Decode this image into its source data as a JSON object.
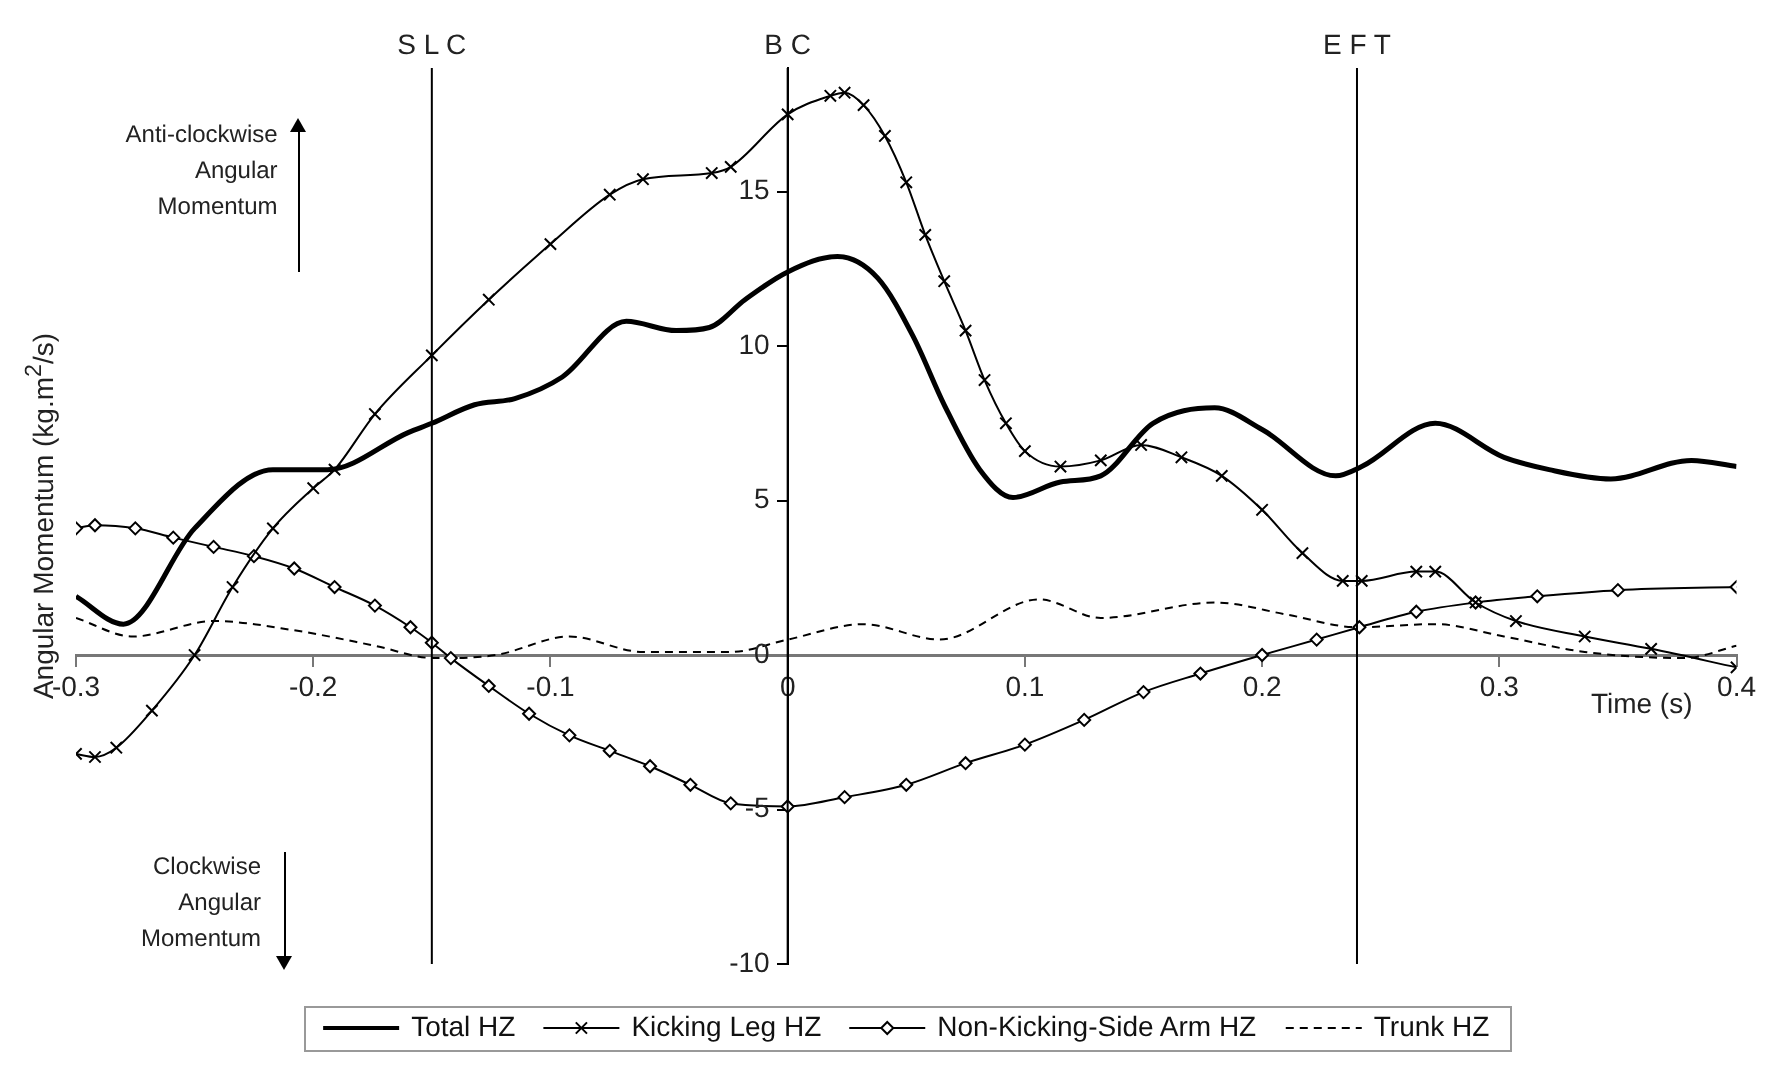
{
  "chart_data": {
    "type": "line",
    "xlabel": "Time (s)",
    "ylabel": "Angular Momentum (kg.m$^{2}$/s)",
    "xlim": [
      -0.3,
      0.4
    ],
    "xticks": [
      -0.3,
      -0.2,
      -0.1,
      0,
      0.1,
      0.2,
      0.3,
      0.4
    ],
    "ylim": [
      -10,
      19
    ],
    "yticks": [
      -10,
      -5,
      0,
      5,
      10,
      15
    ],
    "legend": "bottom",
    "annotations": [
      "Anti-clockwise Angular Momentum",
      "Clockwise Angular Momentum"
    ],
    "ref_lines": [
      {
        "axis": "x",
        "value": -0.15,
        "label": "S L C",
        "color": "#000000"
      },
      {
        "axis": "x",
        "value": 0,
        "label": "B C",
        "color": "#000000"
      },
      {
        "axis": "x",
        "value": 0.24,
        "label": "E F T",
        "color": "#000000"
      }
    ],
    "series": [
      {
        "name": "Total HZ",
        "color": "#000000",
        "marker": "none",
        "line_style": "solid",
        "x": [
          -0.3,
          -0.28,
          -0.25,
          -0.217,
          -0.194,
          -0.16,
          -0.15,
          -0.132,
          -0.115,
          -0.095,
          -0.068,
          -0.047,
          -0.033,
          -0.018,
          0,
          0.021,
          0.038,
          0.053,
          0.066,
          0.081,
          0.095,
          0.115,
          0.132,
          0.154,
          0.18,
          0.2,
          0.231,
          0.242,
          0.273,
          0.302,
          0.321,
          0.347,
          0.381,
          0.4
        ],
        "values": [
          1.9,
          1.0,
          4.1,
          6.0,
          6.0,
          7.2,
          7.5,
          8.1,
          8.3,
          9.0,
          10.8,
          10.5,
          10.6,
          11.5,
          12.4,
          12.9,
          12.2,
          10.3,
          8.1,
          6.0,
          5.1,
          5.6,
          5.8,
          7.5,
          8.0,
          7.3,
          5.8,
          6.1,
          7.5,
          6.4,
          6.0,
          5.7,
          6.3,
          6.1
        ]
      },
      {
        "name": "Kicking Leg HZ",
        "color": "#000000",
        "marker": "cross",
        "line_style": "solid",
        "x": [
          -0.3,
          -0.292,
          -0.283,
          -0.268,
          -0.25,
          -0.234,
          -0.217,
          -0.2,
          -0.191,
          -0.174,
          -0.15,
          -0.126,
          -0.1,
          -0.075,
          -0.061,
          -0.032,
          -0.024,
          0,
          0.018,
          0.024,
          0.032,
          0.041,
          0.05,
          0.058,
          0.066,
          0.075,
          0.083,
          0.092,
          0.1,
          0.115,
          0.132,
          0.149,
          0.166,
          0.183,
          0.2,
          0.217,
          0.234,
          0.242,
          0.265,
          0.273,
          0.29,
          0.307,
          0.336,
          0.364,
          0.4
        ],
        "values": [
          -3.2,
          -3.3,
          -3.0,
          -1.8,
          0,
          2.2,
          4.1,
          5.4,
          6.0,
          7.8,
          9.7,
          11.5,
          13.3,
          14.9,
          15.4,
          15.6,
          15.8,
          17.5,
          18.1,
          18.2,
          17.8,
          16.8,
          15.3,
          13.6,
          12.1,
          10.5,
          8.9,
          7.5,
          6.6,
          6.1,
          6.3,
          6.8,
          6.4,
          5.8,
          4.7,
          3.3,
          2.4,
          2.4,
          2.7,
          2.7,
          1.7,
          1.1,
          0.6,
          0.2,
          -0.4
        ]
      },
      {
        "name": "Non-Kicking-Side Arm HZ",
        "color": "#000000",
        "marker": "diamond",
        "line_style": "solid",
        "x": [
          -0.3,
          -0.292,
          -0.275,
          -0.259,
          -0.242,
          -0.225,
          -0.208,
          -0.191,
          -0.174,
          -0.159,
          -0.15,
          -0.142,
          -0.126,
          -0.109,
          -0.092,
          -0.075,
          -0.058,
          -0.041,
          -0.024,
          0,
          0.024,
          0.05,
          0.075,
          0.1,
          0.125,
          0.15,
          0.174,
          0.2,
          0.223,
          0.241,
          0.265,
          0.29,
          0.316,
          0.35,
          0.4
        ],
        "values": [
          4.1,
          4.2,
          4.1,
          3.8,
          3.5,
          3.2,
          2.8,
          2.2,
          1.6,
          0.9,
          0.4,
          -0.1,
          -1.0,
          -1.9,
          -2.6,
          -3.1,
          -3.6,
          -4.2,
          -4.8,
          -4.9,
          -4.6,
          -4.2,
          -3.5,
          -2.9,
          -2.1,
          -1.2,
          -0.6,
          0,
          0.5,
          0.9,
          1.4,
          1.7,
          1.9,
          2.1,
          2.2
        ]
      },
      {
        "name": "Trunk HZ",
        "color": "#000000",
        "marker": "none",
        "line_style": "dashed",
        "x": [
          -0.3,
          -0.276,
          -0.242,
          -0.208,
          -0.174,
          -0.149,
          -0.123,
          -0.092,
          -0.061,
          -0.024,
          0,
          0.032,
          0.064,
          0.106,
          0.132,
          0.18,
          0.211,
          0.24,
          0.273,
          0.302,
          0.336,
          0.378,
          0.4
        ],
        "values": [
          1.2,
          0.6,
          1.1,
          0.8,
          0.3,
          -0.1,
          0,
          0.6,
          0.1,
          0.1,
          0.5,
          1.0,
          0.5,
          1.8,
          1.2,
          1.7,
          1.3,
          0.9,
          1.0,
          0.6,
          0.1,
          -0.1,
          0.3
        ]
      }
    ]
  }
}
